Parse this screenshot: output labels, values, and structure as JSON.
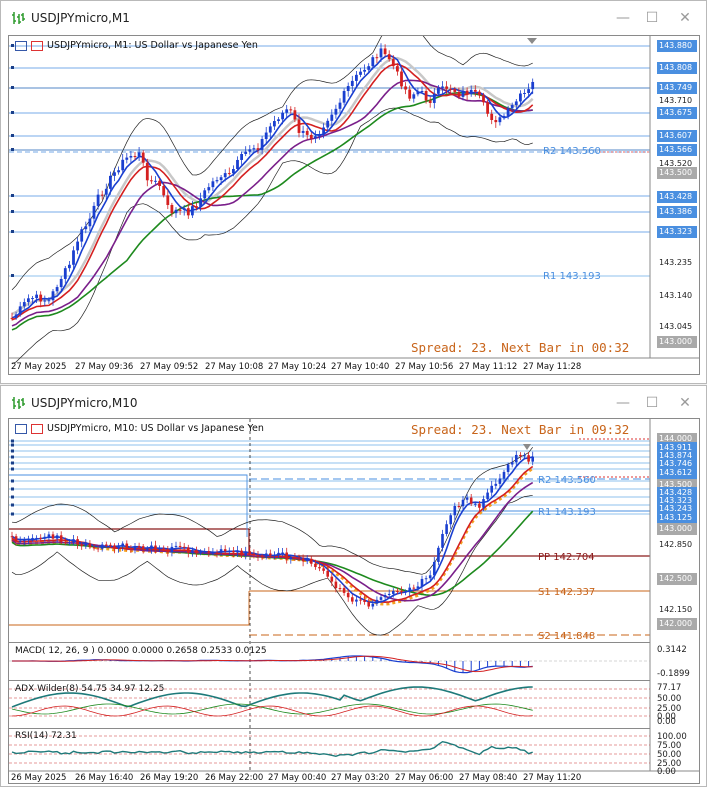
{
  "colors": {
    "blue_label": "#4a8fe0",
    "gray_label": "#a9a9a9",
    "pivot_blue": "#4a8fe0",
    "pivot_dark": "#8b1a1a",
    "pivot_orange": "#c8641a",
    "spread_text": "#c8641a"
  },
  "windows": [
    {
      "title": "USDJPYmicro,M1",
      "header": "USDJPYmicro, M1:  US Dollar vs Japanese Yen",
      "spread": "Spread: 23. Next Bar in 00:32",
      "price_labels": [
        {
          "text": "143.880",
          "style": "blue"
        },
        {
          "text": "143.808",
          "style": "blue"
        },
        {
          "text": "143.749",
          "style": "blue"
        },
        {
          "text": "143.710",
          "style": "plain"
        },
        {
          "text": "143.675",
          "style": "blue"
        },
        {
          "text": "143.607",
          "style": "blue"
        },
        {
          "text": "143.566",
          "style": "blue"
        },
        {
          "text": "143.520",
          "style": "plain"
        },
        {
          "text": "143.500",
          "style": "gray"
        },
        {
          "text": "143.428",
          "style": "blue"
        },
        {
          "text": "143.386",
          "style": "blue"
        },
        {
          "text": "143.323",
          "style": "blue"
        },
        {
          "text": "143.235",
          "style": "plain"
        },
        {
          "text": "143.140",
          "style": "plain"
        },
        {
          "text": "143.045",
          "style": "plain"
        },
        {
          "text": "143.000",
          "style": "gray"
        }
      ],
      "pivots": [
        {
          "text": "R2 143.560",
          "color": "blue"
        },
        {
          "text": "R1 143.193",
          "color": "blue"
        }
      ],
      "time_labels": [
        "27 May 2025",
        "27 May 09:36",
        "27 May 09:52",
        "27 May 10:08",
        "27 May 10:24",
        "27 May 10:40",
        "27 May 10:56",
        "27 May 11:12",
        "27 May 11:28"
      ]
    },
    {
      "title": "USDJPYmicro,M10",
      "header": "USDJPYmicro, M10:  US Dollar vs Japanese Yen",
      "spread": "Spread: 23. Next Bar in 09:32",
      "price_labels": [
        {
          "text": "144.000",
          "style": "gray"
        },
        {
          "text": "143.911",
          "style": "blue"
        },
        {
          "text": "143.874",
          "style": "blue"
        },
        {
          "text": "143.746",
          "style": "blue"
        },
        {
          "text": "143.612",
          "style": "blue"
        },
        {
          "text": "143.500",
          "style": "gray"
        },
        {
          "text": "143.428",
          "style": "blue"
        },
        {
          "text": "143.323",
          "style": "blue"
        },
        {
          "text": "143.243",
          "style": "blue"
        },
        {
          "text": "143.125",
          "style": "blue"
        },
        {
          "text": "143.000",
          "style": "gray"
        },
        {
          "text": "142.850",
          "style": "plain"
        },
        {
          "text": "142.500",
          "style": "gray"
        },
        {
          "text": "142.150",
          "style": "plain"
        },
        {
          "text": "142.000",
          "style": "gray"
        }
      ],
      "pivots": [
        {
          "text": "R2 143.560",
          "color": "blue"
        },
        {
          "text": "R1 143.193",
          "color": "blue"
        },
        {
          "text": "PP 142.704",
          "color": "dark"
        },
        {
          "text": "S1 142.337",
          "color": "orange"
        },
        {
          "text": "S2 141.848",
          "color": "orange"
        }
      ],
      "macd": {
        "header": "MACD( 12, 26, 9 ) 0.0000 0.0000 0.2658 0.2533 0.0125",
        "labels": [
          "0.3142",
          "-0.1899"
        ]
      },
      "adx": {
        "header": "ADX Wilder(8) 54.75 34.97 12.25",
        "labels": [
          "77.17",
          "50.00",
          "25.00",
          "0.00",
          "0.00"
        ]
      },
      "rsi": {
        "header": "RSI(14) 72.31",
        "labels": [
          "100.00",
          "75.00",
          "50.00",
          "25.00",
          "0.00"
        ]
      },
      "time_labels": [
        "26 May 2025",
        "26 May 16:40",
        "26 May 19:20",
        "26 May 22:00",
        "27 May 00:40",
        "27 May 03:20",
        "27 May 06:00",
        "27 May 08:40",
        "27 May 11:20"
      ]
    }
  ]
}
